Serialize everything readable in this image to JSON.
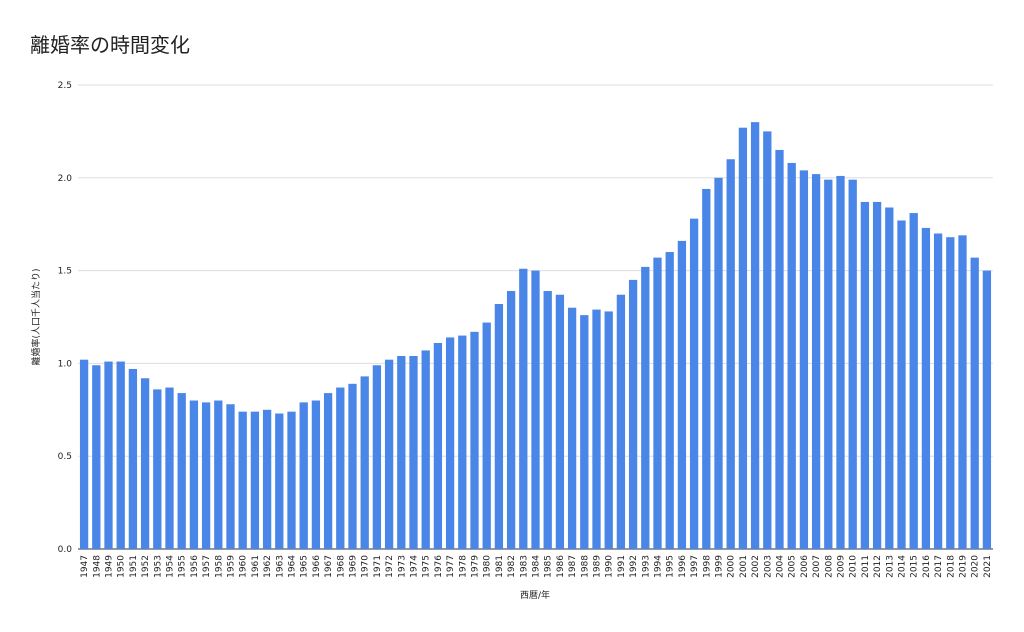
{
  "chart_data": {
    "type": "bar",
    "title": "離婚率の時間変化",
    "x_label": "西暦/年",
    "y_label": "離婚率(人口千人当たり)",
    "categories": [
      "1947",
      "1948",
      "1949",
      "1950",
      "1951",
      "1952",
      "1953",
      "1954",
      "1955",
      "1956",
      "1957",
      "1958",
      "1959",
      "1960",
      "1961",
      "1962",
      "1963",
      "1964",
      "1965",
      "1966",
      "1967",
      "1968",
      "1969",
      "1970",
      "1971",
      "1972",
      "1973",
      "1974",
      "1975",
      "1976",
      "1977",
      "1978",
      "1979",
      "1980",
      "1981",
      "1982",
      "1983",
      "1984",
      "1985",
      "1986",
      "1987",
      "1988",
      "1989",
      "1990",
      "1991",
      "1992",
      "1993",
      "1994",
      "1995",
      "1996",
      "1997",
      "1998",
      "1999",
      "2000",
      "2001",
      "2002",
      "2003",
      "2004",
      "2005",
      "2006",
      "2007",
      "2008",
      "2009",
      "2010",
      "2011",
      "2012",
      "2013",
      "2014",
      "2015",
      "2016",
      "2017",
      "2018",
      "2019",
      "2020",
      "2021"
    ],
    "values": [
      1.02,
      0.99,
      1.01,
      1.01,
      0.97,
      0.92,
      0.86,
      0.87,
      0.84,
      0.8,
      0.79,
      0.8,
      0.78,
      0.74,
      0.74,
      0.75,
      0.73,
      0.74,
      0.79,
      0.8,
      0.84,
      0.87,
      0.89,
      0.93,
      0.99,
      1.02,
      1.04,
      1.04,
      1.07,
      1.11,
      1.14,
      1.15,
      1.17,
      1.22,
      1.32,
      1.39,
      1.51,
      1.5,
      1.39,
      1.37,
      1.3,
      1.26,
      1.29,
      1.28,
      1.37,
      1.45,
      1.52,
      1.57,
      1.6,
      1.66,
      1.78,
      1.94,
      2.0,
      2.1,
      2.27,
      2.3,
      2.25,
      2.15,
      2.08,
      2.04,
      2.02,
      1.99,
      2.01,
      1.99,
      1.87,
      1.87,
      1.84,
      1.77,
      1.81,
      1.73,
      1.7,
      1.68,
      1.69,
      1.57,
      1.5
    ],
    "color": "#4a86e8",
    "ylim": [
      0,
      2.5
    ],
    "yticks": [
      {
        "value": 0,
        "label": "0.0"
      },
      0.5,
      {
        "value": 1,
        "label": "1.0"
      },
      1.5,
      {
        "value": 2,
        "label": "2.0"
      },
      2.5
    ],
    "grid": true
  }
}
